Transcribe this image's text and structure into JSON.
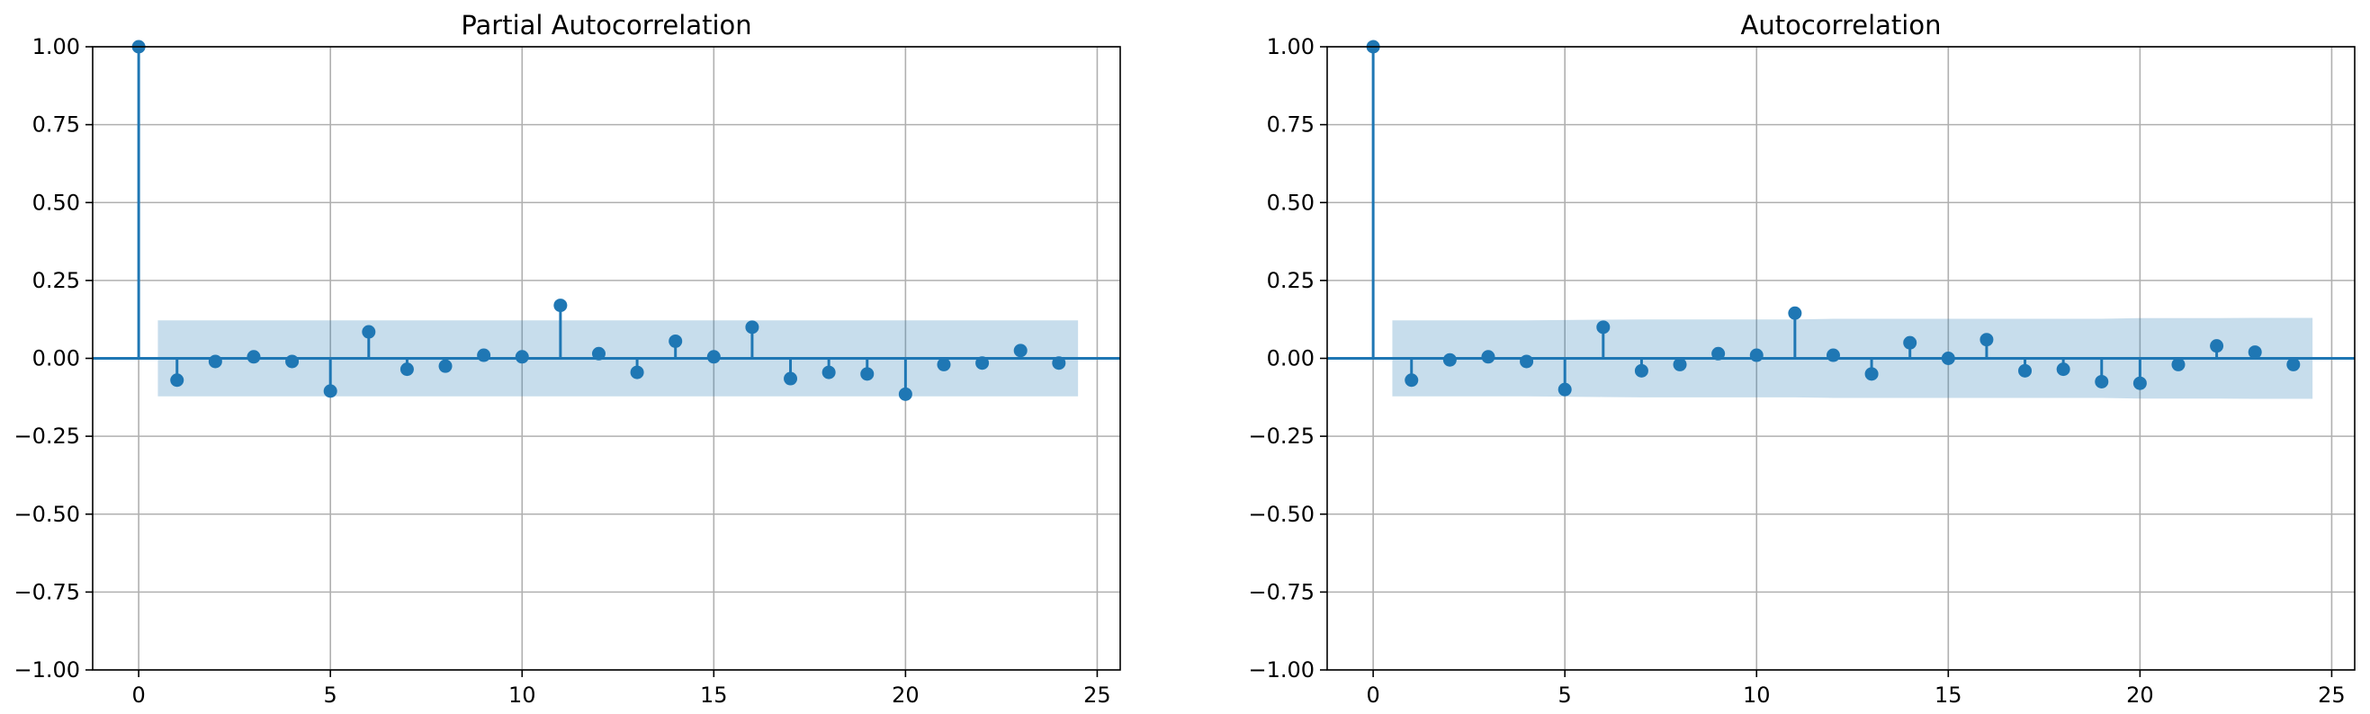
{
  "chart_data": [
    {
      "type": "stem",
      "title": "Partial Autocorrelation",
      "xlabel": "",
      "ylabel": "",
      "xlim": [
        -1.2,
        25.6
      ],
      "ylim": [
        -1.0,
        1.0
      ],
      "xticks": [
        0,
        5,
        10,
        15,
        20,
        25
      ],
      "yticks": [
        -1.0,
        -0.75,
        -0.5,
        -0.25,
        0.0,
        0.25,
        0.5,
        0.75,
        1.0
      ],
      "xtick_labels": [
        "0",
        "5",
        "10",
        "15",
        "20",
        "25"
      ],
      "ytick_labels": [
        "−1.00",
        "−0.75",
        "−0.50",
        "−0.25",
        "0.00",
        "0.25",
        "0.50",
        "0.75",
        "1.00"
      ],
      "grid": true,
      "x": [
        0,
        1,
        2,
        3,
        4,
        5,
        6,
        7,
        8,
        9,
        10,
        11,
        12,
        13,
        14,
        15,
        16,
        17,
        18,
        19,
        20,
        21,
        22,
        23,
        24
      ],
      "values": [
        1.0,
        -0.07,
        -0.01,
        0.005,
        -0.01,
        -0.105,
        0.085,
        -0.035,
        -0.025,
        0.01,
        0.005,
        0.17,
        0.015,
        -0.045,
        0.055,
        0.005,
        0.1,
        -0.065,
        -0.045,
        -0.05,
        -0.115,
        -0.02,
        -0.015,
        0.025,
        -0.015
      ],
      "confidence_band": {
        "x": [
          0.5,
          1,
          2,
          3,
          4,
          5,
          6,
          7,
          8,
          9,
          10,
          11,
          12,
          13,
          14,
          15,
          16,
          17,
          18,
          19,
          20,
          21,
          22,
          23,
          24.5
        ],
        "half_width": [
          0.122,
          0.122,
          0.122,
          0.122,
          0.122,
          0.122,
          0.122,
          0.122,
          0.122,
          0.122,
          0.122,
          0.122,
          0.122,
          0.122,
          0.122,
          0.122,
          0.122,
          0.122,
          0.122,
          0.122,
          0.122,
          0.122,
          0.122,
          0.122,
          0.122
        ]
      },
      "colors": {
        "stem": "#1f77b4",
        "band": "#1f77b4",
        "grid": "#b0b0b0"
      }
    },
    {
      "type": "stem",
      "title": "Autocorrelation",
      "xlabel": "",
      "ylabel": "",
      "xlim": [
        -1.2,
        25.6
      ],
      "ylim": [
        -1.0,
        1.0
      ],
      "xticks": [
        0,
        5,
        10,
        15,
        20,
        25
      ],
      "yticks": [
        -1.0,
        -0.75,
        -0.5,
        -0.25,
        0.0,
        0.25,
        0.5,
        0.75,
        1.0
      ],
      "xtick_labels": [
        "0",
        "5",
        "10",
        "15",
        "20",
        "25"
      ],
      "ytick_labels": [
        "−1.00",
        "−0.75",
        "−0.50",
        "−0.25",
        "0.00",
        "0.25",
        "0.50",
        "0.75",
        "1.00"
      ],
      "grid": true,
      "x": [
        0,
        1,
        2,
        3,
        4,
        5,
        6,
        7,
        8,
        9,
        10,
        11,
        12,
        13,
        14,
        15,
        16,
        17,
        18,
        19,
        20,
        21,
        22,
        23,
        24
      ],
      "values": [
        1.0,
        -0.07,
        -0.005,
        0.005,
        -0.01,
        -0.1,
        0.1,
        -0.04,
        -0.02,
        0.015,
        0.01,
        0.145,
        0.01,
        -0.05,
        0.05,
        0.0,
        0.06,
        -0.04,
        -0.035,
        -0.075,
        -0.08,
        -0.02,
        0.04,
        0.02,
        -0.02
      ],
      "confidence_band": {
        "x": [
          0.5,
          1,
          2,
          3,
          4,
          5,
          6,
          7,
          8,
          9,
          10,
          11,
          12,
          13,
          14,
          15,
          16,
          17,
          18,
          19,
          20,
          21,
          22,
          23,
          24.5
        ],
        "half_width": [
          0.122,
          0.122,
          0.122,
          0.122,
          0.122,
          0.123,
          0.124,
          0.125,
          0.125,
          0.125,
          0.125,
          0.125,
          0.127,
          0.127,
          0.127,
          0.127,
          0.127,
          0.127,
          0.127,
          0.127,
          0.129,
          0.129,
          0.129,
          0.13,
          0.13
        ]
      },
      "colors": {
        "stem": "#1f77b4",
        "band": "#1f77b4",
        "grid": "#b0b0b0"
      }
    }
  ]
}
